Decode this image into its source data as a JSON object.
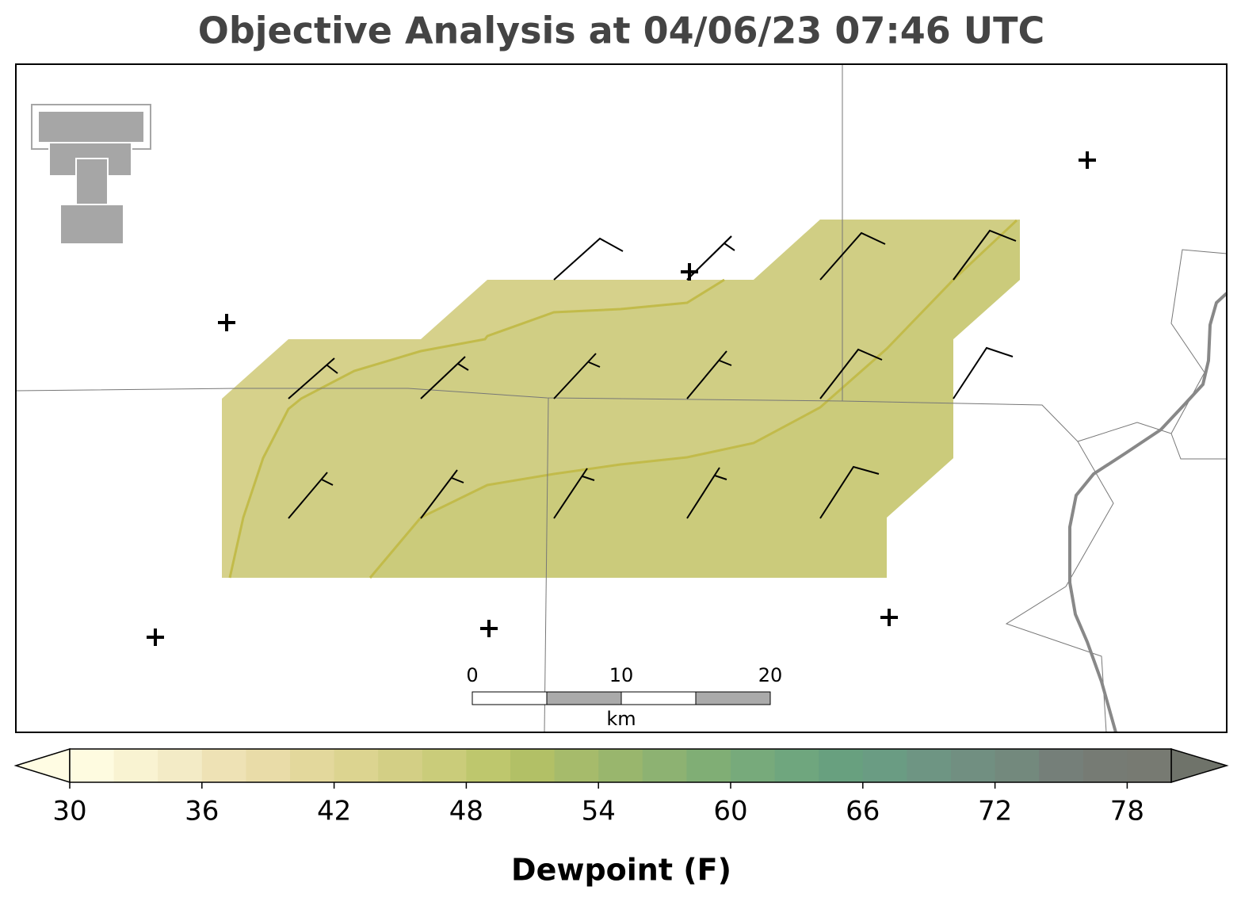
{
  "title": "Objective Analysis at 04/06/23 07:46 UTC",
  "scale_bar": {
    "ticks": [
      0,
      10,
      20
    ],
    "unit": "km"
  },
  "colorbar": {
    "label": "Dewpoint (F)",
    "bounds": [
      30,
      32,
      34,
      36,
      38,
      40,
      42,
      44,
      46,
      48,
      50,
      52,
      54,
      56,
      58,
      60,
      62,
      64,
      66,
      68,
      70,
      72,
      74,
      76,
      78,
      80
    ],
    "ticks": [
      30,
      36,
      42,
      48,
      54,
      60,
      66,
      72,
      78
    ],
    "colors": [
      "#fefbe0",
      "#f9f3d2",
      "#f3ebc6",
      "#eee2b5",
      "#e9dca8",
      "#e3d89c",
      "#dcd490",
      "#d3cf85",
      "#cacc7a",
      "#bec76d",
      "#b2c066",
      "#a6bb6b",
      "#99b66d",
      "#8db272",
      "#80ae75",
      "#77aa7b",
      "#6fa67e",
      "#68a07f",
      "#6a9c83",
      "#6e9583",
      "#718f81",
      "#73897d",
      "#757f79",
      "#767b74",
      "#777a72"
    ],
    "under_color": "#fffce3",
    "over_color": "#6f736a"
  }
}
